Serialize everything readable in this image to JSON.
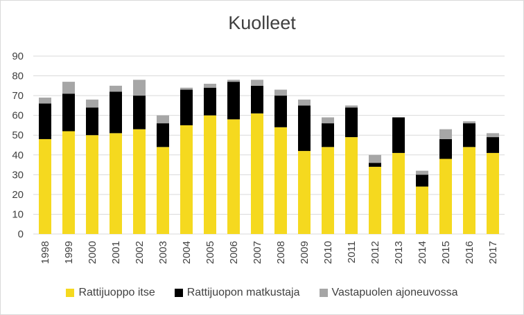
{
  "chart_data": {
    "type": "bar",
    "stacked": true,
    "title": "Kuolleet",
    "xlabel": "",
    "ylabel": "",
    "ylim": [
      0,
      90
    ],
    "yticks": [
      0,
      10,
      20,
      30,
      40,
      50,
      60,
      70,
      80,
      90
    ],
    "grid": true,
    "legend_position": "bottom",
    "categories": [
      "1998",
      "1999",
      "2000",
      "2001",
      "2002",
      "2003",
      "2004",
      "2005",
      "2006",
      "2007",
      "2008",
      "2009",
      "2010",
      "2011",
      "2012",
      "2013",
      "2014",
      "2015",
      "2016",
      "2017"
    ],
    "series": [
      {
        "name": "Rattijuoppo itse",
        "color": "#f5d91f",
        "values": [
          48,
          52,
          50,
          51,
          53,
          44,
          55,
          60,
          58,
          61,
          54,
          42,
          44,
          49,
          34,
          41,
          24,
          38,
          44,
          41
        ]
      },
      {
        "name": "Rattijuopon matkustaja",
        "color": "#000000",
        "values": [
          18,
          19,
          14,
          21,
          17,
          12,
          18,
          14,
          19,
          14,
          16,
          23,
          12,
          15,
          2,
          18,
          6,
          10,
          12,
          8
        ]
      },
      {
        "name": "Vastapuolen ajoneuvossa",
        "color": "#a6a6a6",
        "values": [
          3,
          6,
          4,
          3,
          8,
          4,
          1,
          2,
          1,
          3,
          3,
          3,
          3,
          1,
          4,
          0,
          2,
          5,
          1,
          2
        ]
      }
    ]
  }
}
